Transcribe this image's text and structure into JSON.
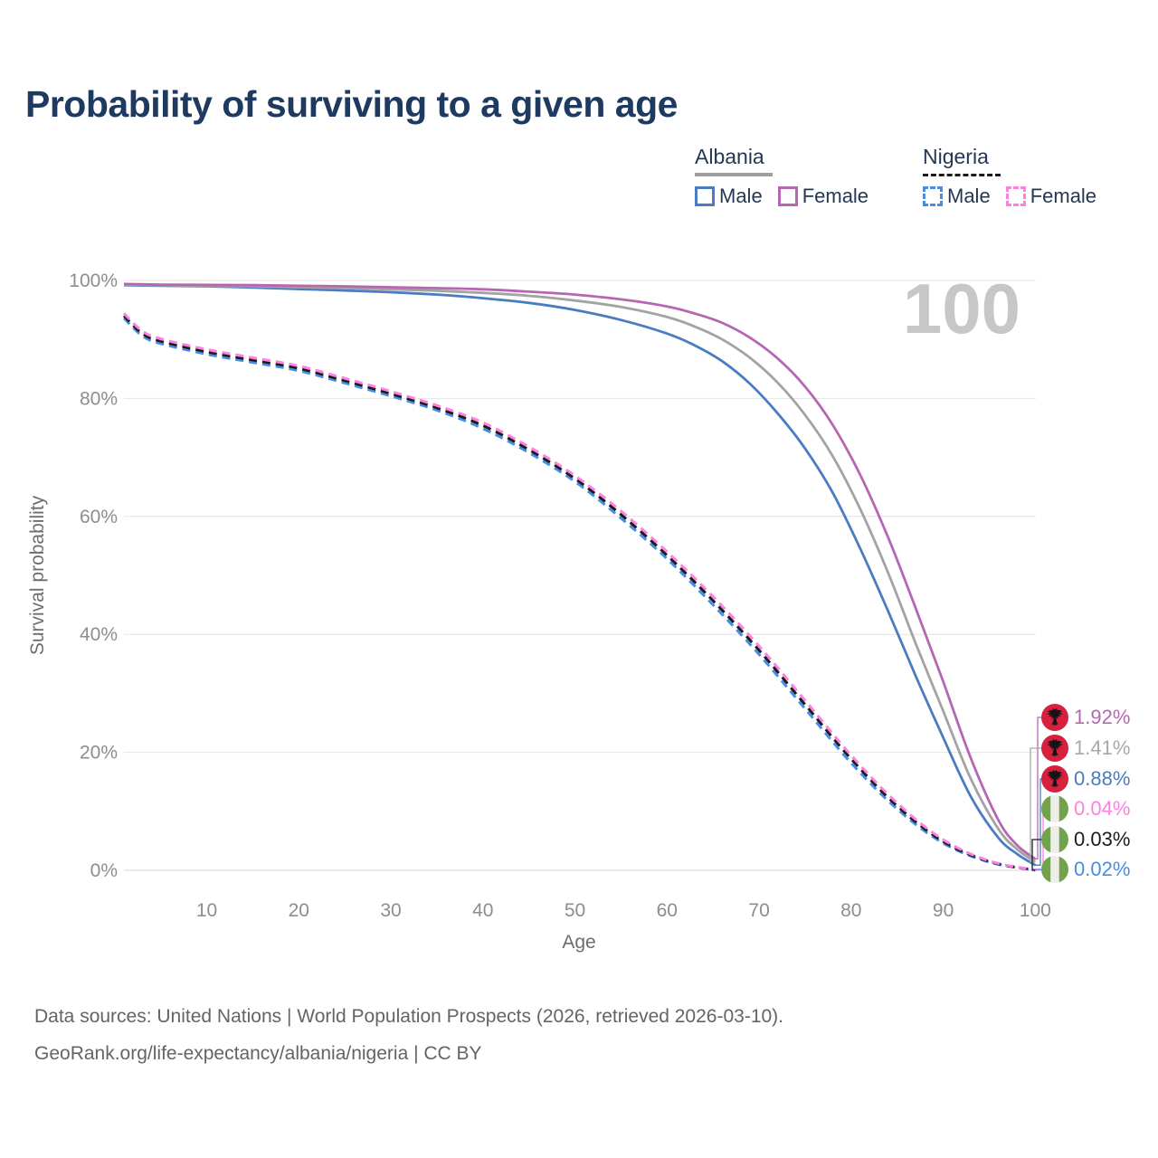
{
  "title": "Probability of surviving to a given age",
  "watermark": "100",
  "legend": {
    "groups": [
      {
        "country": "Albania",
        "line_style": "solid",
        "underline_color": "#9e9e9e",
        "items": [
          {
            "label": "Male",
            "color": "#4a7cc1",
            "dash": false
          },
          {
            "label": "Female",
            "color": "#b766b4",
            "dash": false
          }
        ]
      },
      {
        "country": "Nigeria",
        "line_style": "dashed",
        "underline_color": "#1b1b1b",
        "items": [
          {
            "label": "Male",
            "color": "#458ee8",
            "dash": true
          },
          {
            "label": "Female",
            "color": "#ff80e0",
            "dash": true
          }
        ]
      }
    ]
  },
  "chart_data": {
    "type": "line",
    "title": "Probability of surviving to a given age",
    "xlabel": "Age",
    "ylabel": "Survival probability",
    "xlim": [
      1,
      100
    ],
    "ylim": [
      0,
      100
    ],
    "grid": "horizontal",
    "legend_position": "top-right",
    "xticks": [
      10,
      20,
      30,
      40,
      50,
      60,
      70,
      80,
      90,
      100
    ],
    "xtick_labels": [
      "10",
      "20",
      "30",
      "40",
      "50",
      "60",
      "70",
      "80",
      "90",
      "100"
    ],
    "yticks": [
      100,
      80,
      60,
      40,
      20,
      0
    ],
    "ytick_labels": [
      "100%",
      "80%",
      "60%",
      "40%",
      "20%",
      "0%"
    ],
    "series": [
      {
        "key": "albania_male",
        "name": "Albania Male",
        "color": "#4a7cc1",
        "dash": false,
        "points": [
          [
            1,
            99.2
          ],
          [
            5,
            99.1
          ],
          [
            10,
            99.0
          ],
          [
            15,
            98.8
          ],
          [
            20,
            98.55
          ],
          [
            25,
            98.3
          ],
          [
            30,
            98.0
          ],
          [
            35,
            97.6
          ],
          [
            40,
            97.0
          ],
          [
            45,
            96.2
          ],
          [
            50,
            95.0
          ],
          [
            55,
            93.3
          ],
          [
            60,
            91.0
          ],
          [
            63,
            89.0
          ],
          [
            66,
            86.3
          ],
          [
            69,
            82.5
          ],
          [
            72,
            77.5
          ],
          [
            75,
            71.5
          ],
          [
            78,
            64.0
          ],
          [
            81,
            54.5
          ],
          [
            84,
            44.0
          ],
          [
            87,
            33.0
          ],
          [
            90,
            22.5
          ],
          [
            93,
            12.5
          ],
          [
            96,
            5.5
          ],
          [
            98,
            2.8
          ],
          [
            100,
            0.88
          ]
        ]
      },
      {
        "key": "albania_total",
        "name": "Albania Total",
        "color": "#a3a3a3",
        "dash": false,
        "points": [
          [
            1,
            99.3
          ],
          [
            5,
            99.2
          ],
          [
            10,
            99.1
          ],
          [
            15,
            99.0
          ],
          [
            20,
            98.85
          ],
          [
            25,
            98.7
          ],
          [
            30,
            98.5
          ],
          [
            35,
            98.25
          ],
          [
            40,
            97.9
          ],
          [
            45,
            97.4
          ],
          [
            50,
            96.6
          ],
          [
            55,
            95.5
          ],
          [
            60,
            93.8
          ],
          [
            63,
            92.2
          ],
          [
            66,
            90.0
          ],
          [
            69,
            86.9
          ],
          [
            72,
            82.7
          ],
          [
            75,
            77.2
          ],
          [
            78,
            70.2
          ],
          [
            81,
            61.2
          ],
          [
            84,
            50.5
          ],
          [
            87,
            38.5
          ],
          [
            90,
            27.0
          ],
          [
            93,
            15.5
          ],
          [
            96,
            7.0
          ],
          [
            98,
            3.6
          ],
          [
            100,
            1.41
          ]
        ]
      },
      {
        "key": "albania_female",
        "name": "Albania Female",
        "color": "#b766b4",
        "dash": false,
        "points": [
          [
            1,
            99.4
          ],
          [
            5,
            99.3
          ],
          [
            10,
            99.25
          ],
          [
            15,
            99.2
          ],
          [
            20,
            99.1
          ],
          [
            25,
            99.0
          ],
          [
            30,
            98.85
          ],
          [
            35,
            98.7
          ],
          [
            40,
            98.5
          ],
          [
            45,
            98.1
          ],
          [
            50,
            97.6
          ],
          [
            55,
            96.8
          ],
          [
            60,
            95.6
          ],
          [
            63,
            94.4
          ],
          [
            66,
            92.8
          ],
          [
            69,
            90.3
          ],
          [
            72,
            86.8
          ],
          [
            75,
            82.0
          ],
          [
            78,
            75.5
          ],
          [
            81,
            67.0
          ],
          [
            84,
            56.5
          ],
          [
            87,
            44.5
          ],
          [
            90,
            32.0
          ],
          [
            93,
            19.0
          ],
          [
            96,
            8.5
          ],
          [
            98,
            4.3
          ],
          [
            100,
            1.92
          ]
        ]
      },
      {
        "key": "nigeria_male",
        "name": "Nigeria Male",
        "color": "#458ee8",
        "dash": true,
        "points": [
          [
            1,
            93.6
          ],
          [
            3,
            90.6
          ],
          [
            5,
            89.3
          ],
          [
            10,
            87.5
          ],
          [
            15,
            86.1
          ],
          [
            20,
            84.7
          ],
          [
            25,
            82.6
          ],
          [
            30,
            80.4
          ],
          [
            35,
            78.0
          ],
          [
            40,
            74.9
          ],
          [
            45,
            70.8
          ],
          [
            50,
            65.9
          ],
          [
            55,
            59.7
          ],
          [
            60,
            52.8
          ],
          [
            65,
            45.0
          ],
          [
            70,
            36.6
          ],
          [
            75,
            27.4
          ],
          [
            80,
            18.2
          ],
          [
            85,
            10.4
          ],
          [
            90,
            4.6
          ],
          [
            95,
            1.4
          ],
          [
            100,
            0.02
          ]
        ]
      },
      {
        "key": "nigeria_total",
        "name": "Nigeria Total",
        "color": "#1b1b1b",
        "dash": true,
        "points": [
          [
            1,
            94.0
          ],
          [
            3,
            91.0
          ],
          [
            5,
            89.7
          ],
          [
            10,
            87.9
          ],
          [
            15,
            86.5
          ],
          [
            20,
            85.1
          ],
          [
            25,
            83.0
          ],
          [
            30,
            80.8
          ],
          [
            35,
            78.4
          ],
          [
            40,
            75.4
          ],
          [
            45,
            71.3
          ],
          [
            50,
            66.4
          ],
          [
            55,
            60.3
          ],
          [
            60,
            53.4
          ],
          [
            65,
            45.7
          ],
          [
            70,
            37.3
          ],
          [
            75,
            28.1
          ],
          [
            80,
            18.9
          ],
          [
            85,
            10.9
          ],
          [
            90,
            4.9
          ],
          [
            95,
            1.5
          ],
          [
            100,
            0.03
          ]
        ]
      },
      {
        "key": "nigeria_female",
        "name": "Nigeria Female",
        "color": "#ff80e0",
        "dash": true,
        "points": [
          [
            1,
            94.4
          ],
          [
            3,
            91.4
          ],
          [
            5,
            90.1
          ],
          [
            10,
            88.3
          ],
          [
            15,
            86.9
          ],
          [
            20,
            85.5
          ],
          [
            25,
            83.4
          ],
          [
            30,
            81.2
          ],
          [
            35,
            78.8
          ],
          [
            40,
            75.9
          ],
          [
            45,
            71.8
          ],
          [
            50,
            66.9
          ],
          [
            55,
            60.9
          ],
          [
            60,
            54.0
          ],
          [
            65,
            46.4
          ],
          [
            70,
            38.0
          ],
          [
            75,
            28.8
          ],
          [
            80,
            19.5
          ],
          [
            85,
            11.4
          ],
          [
            90,
            5.2
          ],
          [
            95,
            1.6
          ],
          [
            100,
            0.04
          ]
        ]
      }
    ]
  },
  "end_labels": [
    {
      "flag": "albania",
      "series_key": "albania_female",
      "value": "1.92%",
      "color": "#b766b4"
    },
    {
      "flag": "albania",
      "series_key": "albania_total",
      "value": "1.41%",
      "color": "#a8a8a8"
    },
    {
      "flag": "albania",
      "series_key": "albania_male",
      "value": "0.88%",
      "color": "#4a7cc1"
    },
    {
      "flag": "nigeria",
      "series_key": "nigeria_female",
      "value": "0.04%",
      "color": "#ff80e0"
    },
    {
      "flag": "nigeria",
      "series_key": "nigeria_total",
      "value": "0.03%",
      "color": "#1b1b1b"
    },
    {
      "flag": "nigeria",
      "series_key": "nigeria_male",
      "value": "0.02%",
      "color": "#458ee8"
    }
  ],
  "footer": {
    "line1": "Data sources: United Nations | World Population Prospects (2026, retrieved 2026-03-10).",
    "line2": "GeoRank.org/life-expectancy/albania/nigeria | CC BY"
  }
}
